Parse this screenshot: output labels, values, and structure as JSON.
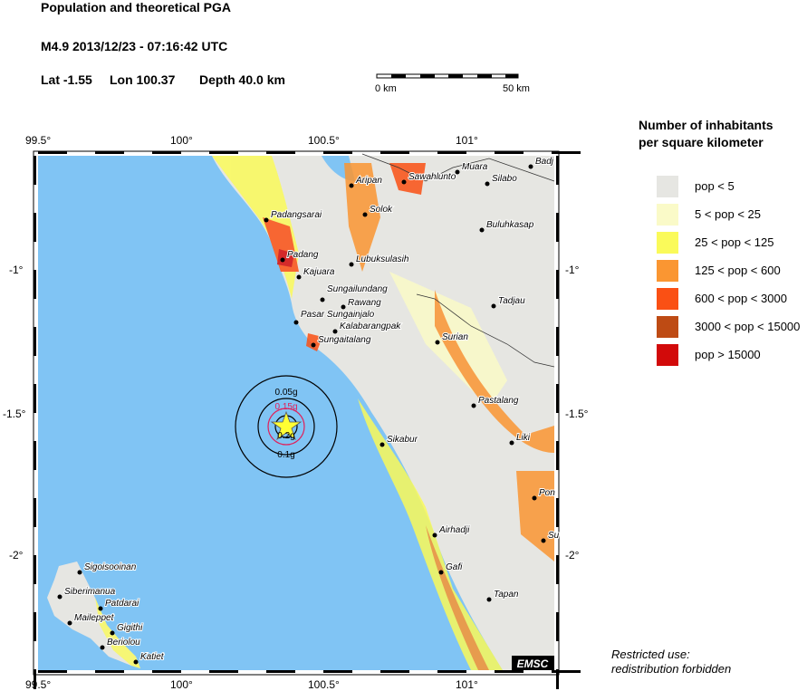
{
  "header": {
    "title": "Population and theoretical PGA",
    "event": "M4.9  2013/12/23 - 07:16:42 UTC",
    "lat": "Lat -1.55",
    "lon": "Lon 100.37",
    "depth": "Depth  40.0 km"
  },
  "scale": {
    "start": "0 km",
    "end": "50 km"
  },
  "axes": {
    "lon_ticks": [
      "99.5°",
      "100°",
      "100.5°",
      "101°"
    ],
    "lat_ticks": [
      "-1°",
      "-1.5°",
      "-2°"
    ]
  },
  "pga_rings": [
    "0.05g",
    "0.15g",
    "0.2g",
    "0.1g"
  ],
  "cities": [
    "Aripan",
    "Sawahlunto",
    "Muara",
    "Silabo",
    "Badj",
    "Padangsarai",
    "Solok",
    "Buluhkasap",
    "Padang",
    "Lubuksulasih",
    "Kajuara",
    "Sungailundang",
    "Rawang",
    "Tadjau",
    "Pasar Sungainjalo",
    "Kalabarangpak",
    "Sungaitalang",
    "Surian",
    "Pastalang",
    "Liki",
    "Sikabur",
    "Pon",
    "Su",
    "Airhadji",
    "Gafi",
    "Tapan",
    "Sigoisooinan",
    "Siberimanua",
    "Patdarai",
    "Maileppet",
    "Gigithi",
    "Beriolou",
    "Katiet"
  ],
  "logo": "EMSC",
  "legend": {
    "title_line1": "Number of inhabitants",
    "title_line2": "per square kilometer",
    "items": [
      {
        "label": "pop < 5",
        "color": "#e6e6e2"
      },
      {
        "label": "5 < pop < 25",
        "color": "#fafac8"
      },
      {
        "label": "25 < pop < 125",
        "color": "#fafa5a"
      },
      {
        "label": "125 < pop < 600",
        "color": "#fa9632"
      },
      {
        "label": "600 < pop < 3000",
        "color": "#fa5014"
      },
      {
        "label": "3000 < pop < 15000",
        "color": "#be4b14"
      },
      {
        "label": "pop > 15000",
        "color": "#d20a0a"
      }
    ]
  },
  "note": {
    "line1": "Restricted use:",
    "line2": "redistribution forbidden"
  },
  "colors": {
    "ocean": "#80c4f4",
    "land": "#e6e6e2",
    "epicenter": "#ffff33"
  }
}
